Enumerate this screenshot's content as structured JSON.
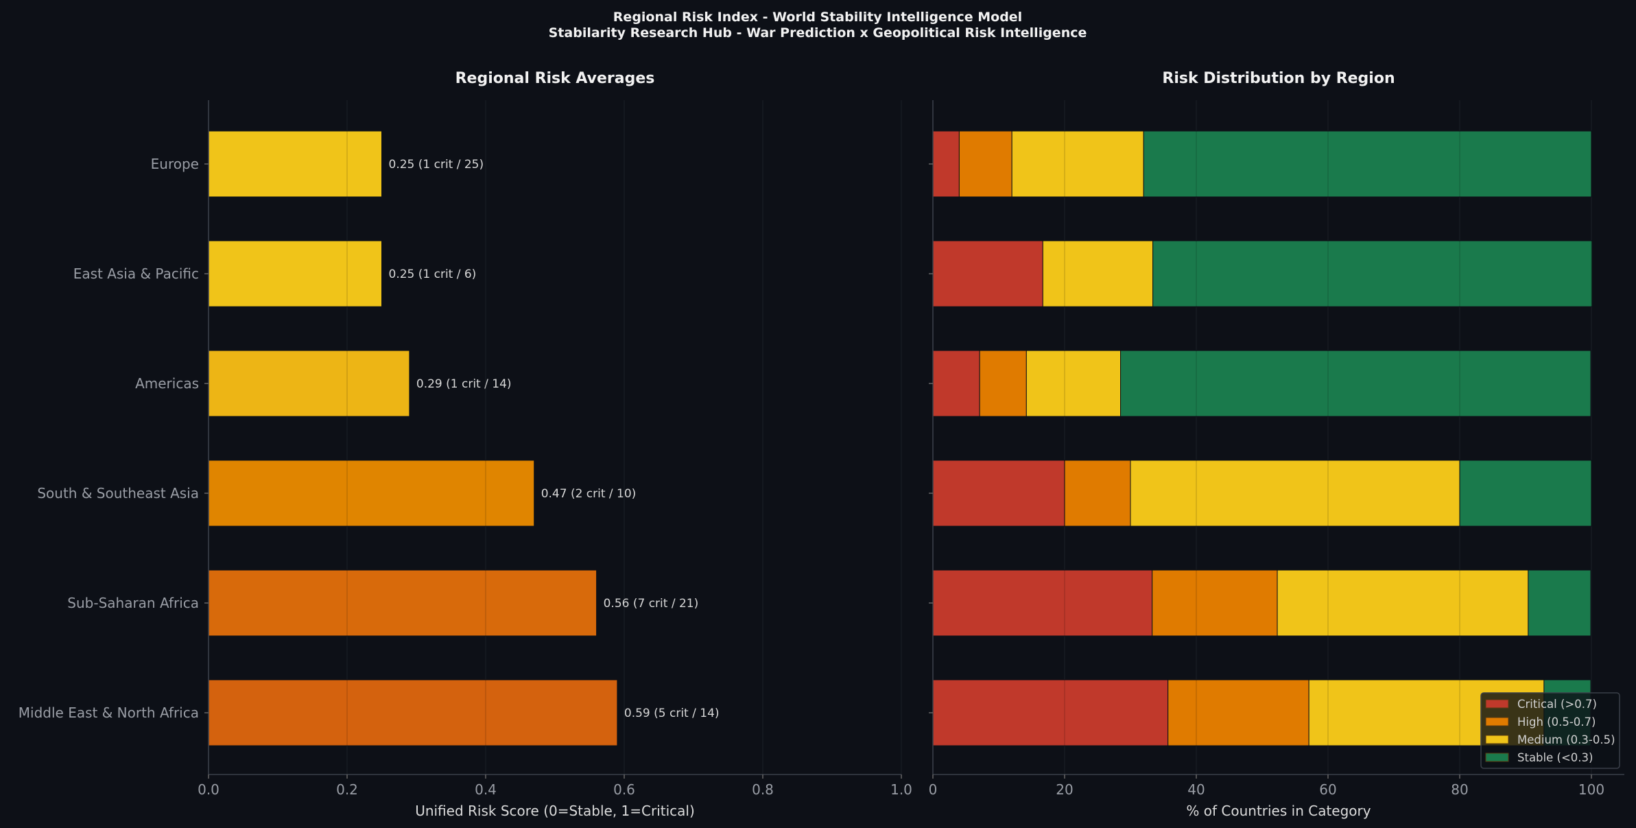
{
  "title": "Regional Risk Index - World Stability Intelligence Model",
  "subtitle": "Stabilarity Research Hub - War Prediction x Geopolitical Risk Intelligence",
  "chart_data": [
    {
      "type": "bar",
      "orientation": "horizontal",
      "title": "Regional Risk Averages",
      "xlabel": "Unified Risk Score (0=Stable, 1=Critical)",
      "ylabel": "",
      "xlim": [
        0,
        1.0
      ],
      "xticks": [
        "0.0",
        "0.2",
        "0.4",
        "0.6",
        "0.8",
        "1.0"
      ],
      "grid": true,
      "categories": [
        "Europe",
        "East Asia & Pacific",
        "Americas",
        "South & Southeast Asia",
        "Sub-Saharan Africa",
        "Middle East & North Africa"
      ],
      "values": [
        0.25,
        0.25,
        0.29,
        0.47,
        0.56,
        0.59
      ],
      "data_labels": [
        "0.25  (1 crit / 25)",
        "0.25  (1 crit / 6)",
        "0.29  (1 crit / 14)",
        "0.47  (2 crit / 10)",
        "0.56  (7 crit / 21)",
        "0.59  (5 crit / 14)"
      ],
      "colors": [
        "#f0c419",
        "#f0c419",
        "#edb515",
        "#e08500",
        "#d86a0b",
        "#d4620e"
      ]
    },
    {
      "type": "bar",
      "orientation": "horizontal",
      "stacked": true,
      "title": "Risk Distribution by Region",
      "xlabel": "% of Countries in Category",
      "ylabel": "",
      "xlim": [
        0,
        105
      ],
      "xticks": [
        "0",
        "20",
        "40",
        "60",
        "80",
        "100"
      ],
      "grid": true,
      "legend_position": "bottom-right",
      "categories": [
        "Europe",
        "East Asia & Pacific",
        "Americas",
        "South & Southeast Asia",
        "Sub-Saharan Africa",
        "Middle East & North Africa"
      ],
      "series": [
        {
          "name": "Critical (>0.7)",
          "color": "#c0392b",
          "values": [
            4.0,
            16.7,
            7.1,
            20.0,
            33.3,
            35.7
          ]
        },
        {
          "name": "High (0.5-0.7)",
          "color": "#e07b00",
          "values": [
            8.0,
            0.0,
            7.1,
            10.0,
            19.0,
            21.4
          ]
        },
        {
          "name": "Medium (0.3-0.5)",
          "color": "#f0c419",
          "values": [
            20.0,
            16.7,
            14.3,
            50.0,
            38.1,
            35.7
          ]
        },
        {
          "name": "Stable (<0.3)",
          "color": "#1a7a4c",
          "values": [
            68.0,
            66.7,
            71.4,
            20.0,
            9.5,
            7.1
          ]
        }
      ]
    }
  ]
}
